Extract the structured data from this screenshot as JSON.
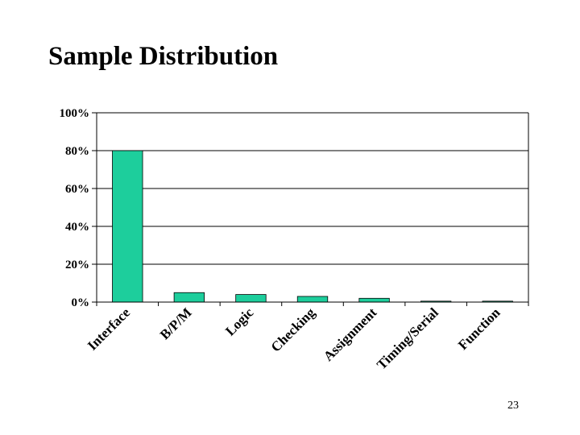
{
  "slide": {
    "title": "Sample Distribution",
    "page_number": "23"
  },
  "colors": {
    "bar_fill": "#1DCE9C",
    "bar_stroke": "#000000",
    "grid": "#000000",
    "axis": "#000000"
  },
  "chart_data": {
    "type": "bar",
    "categories": [
      "Interface",
      "B/P/M",
      "Logic",
      "Checking",
      "Assignment",
      "Timing/Serial",
      "Function"
    ],
    "values": [
      80,
      5,
      4,
      3,
      2,
      0.5,
      0.5
    ],
    "ylim": [
      0,
      100
    ],
    "yticks": [
      0,
      20,
      40,
      60,
      80,
      100
    ],
    "ytick_labels": [
      "0%",
      "20%",
      "40%",
      "60%",
      "80%",
      "100%"
    ],
    "grid": true,
    "legend": "none",
    "title": "",
    "xlabel": "",
    "ylabel": ""
  }
}
